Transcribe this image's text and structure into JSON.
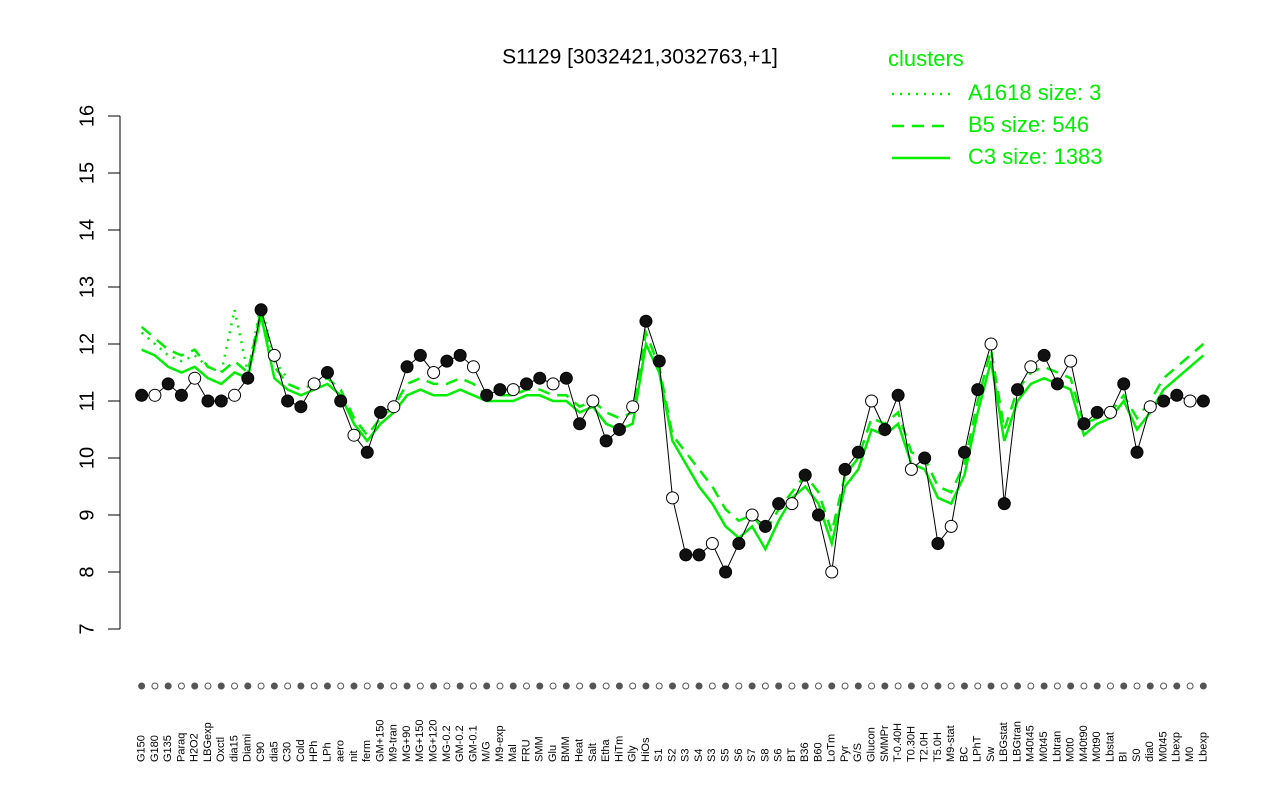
{
  "chart_data": {
    "type": "line",
    "title": "S1129 [3032421,3032763,+1]",
    "legend_title": "clusters",
    "legend_color": "#00ee00",
    "categories": [
      "G150",
      "G180",
      "G135",
      "Paraq",
      "H2O2",
      "LBGexp",
      "Oxctl",
      "dia15",
      "Diami",
      "C90",
      "dia5",
      "C30",
      "Cold",
      "HPh",
      "LPh",
      "aero",
      "nit",
      "ferm",
      "GM+150",
      "M9-tran",
      "MG+90",
      "MG+150",
      "MG+120",
      "MG-0.2",
      "GM-0.2",
      "GM-0.1",
      "M/G",
      "M9-exp",
      "Mal",
      "FRU",
      "SMM",
      "Glu",
      "BMM",
      "Heat",
      "Salt",
      "Etha",
      "HiTm",
      "Gly",
      "HiOs",
      "S1",
      "S2",
      "S3",
      "S4",
      "S3",
      "S5",
      "S6",
      "S7",
      "S8",
      "S6",
      "BT",
      "B36",
      "B60",
      "LoTm",
      "Pyr",
      "G/S",
      "Glucon",
      "SMMPr",
      "T-0.40H",
      "T0.30H",
      "T2.0H",
      "T5.0H",
      "M9-stat",
      "BC",
      "LPhT",
      "Sw",
      "LBGstat",
      "LBGtran",
      "M40t45",
      "M0t45",
      "Lbtran",
      "M0t0",
      "M40t90",
      "M0t90",
      "Lbstat",
      "BI",
      "S0",
      "dia0",
      "M0t45",
      "Lbexp",
      "M0",
      "Lbexp"
    ],
    "points": [
      11.1,
      11.1,
      11.3,
      11.1,
      11.4,
      11.0,
      11.0,
      11.1,
      11.4,
      12.6,
      11.8,
      11.0,
      10.9,
      11.3,
      11.5,
      11.0,
      10.4,
      10.1,
      10.8,
      10.9,
      11.6,
      11.8,
      11.5,
      11.7,
      11.8,
      11.6,
      11.1,
      11.2,
      11.2,
      11.3,
      11.4,
      11.3,
      11.4,
      10.6,
      11.0,
      10.3,
      10.5,
      10.9,
      12.4,
      11.7,
      9.3,
      8.3,
      8.3,
      8.5,
      8.0,
      8.5,
      9.0,
      8.8,
      9.2,
      9.2,
      9.7,
      9.0,
      8.0,
      9.8,
      10.1,
      11.0,
      10.5,
      11.1,
      9.8,
      10.0,
      8.5,
      8.8,
      10.1,
      11.2,
      12.0,
      9.2,
      11.2,
      11.6,
      11.8,
      11.3,
      11.7,
      10.6,
      10.8,
      10.8,
      11.3,
      10.1,
      10.9,
      11.0,
      11.1,
      11.0,
      11.0
    ],
    "series": [
      {
        "name": "A1618 size: 3",
        "style": "dotted",
        "color": "#00ee00",
        "values": [
          12.2,
          12.0,
          11.8,
          11.7,
          11.8,
          11.6,
          11.5,
          12.6,
          11.5,
          12.7,
          11.7,
          11.4,
          null,
          null,
          null,
          null,
          null,
          null,
          null,
          null,
          null,
          null,
          null,
          null,
          null,
          null,
          null,
          null,
          null,
          null,
          null,
          null,
          null,
          null,
          null,
          null,
          null,
          null,
          null,
          null,
          null,
          null,
          null,
          null,
          null,
          null,
          null,
          null,
          null,
          null,
          null,
          null,
          null,
          null,
          null,
          null,
          null,
          null,
          null,
          null,
          null,
          null,
          null,
          null,
          null,
          null,
          null,
          null,
          null,
          null,
          null,
          null,
          null,
          null,
          null,
          null,
          null,
          null,
          null,
          null,
          null
        ]
      },
      {
        "name": "B5 size: 546",
        "style": "dashed",
        "color": "#00ee00",
        "values": [
          12.3,
          12.1,
          11.9,
          11.8,
          11.9,
          11.6,
          11.5,
          11.7,
          11.5,
          12.6,
          11.6,
          11.3,
          11.2,
          11.3,
          11.4,
          11.2,
          10.7,
          10.4,
          10.7,
          10.9,
          11.3,
          11.4,
          11.3,
          11.3,
          11.4,
          11.3,
          11.1,
          11.1,
          11.1,
          11.2,
          11.2,
          11.1,
          11.1,
          10.9,
          11.0,
          10.8,
          10.7,
          10.8,
          12.2,
          11.6,
          10.4,
          10.1,
          9.8,
          9.5,
          9.1,
          8.9,
          9.0,
          8.7,
          9.1,
          9.4,
          9.7,
          9.4,
          8.7,
          9.7,
          10.0,
          10.7,
          10.6,
          10.8,
          10.1,
          10.0,
          9.5,
          9.4,
          9.9,
          11.0,
          11.9,
          10.5,
          11.2,
          11.5,
          11.6,
          11.5,
          11.4,
          10.6,
          10.7,
          10.8,
          11.1,
          10.7,
          11.0,
          11.4,
          11.6,
          11.8,
          12.0
        ]
      },
      {
        "name": "C3 size: 1383",
        "style": "solid",
        "color": "#00ee00",
        "values": [
          11.9,
          11.8,
          11.6,
          11.5,
          11.6,
          11.4,
          11.3,
          11.5,
          11.4,
          12.5,
          11.4,
          11.2,
          11.1,
          11.2,
          11.3,
          11.1,
          10.6,
          10.3,
          10.6,
          10.8,
          11.1,
          11.2,
          11.1,
          11.1,
          11.2,
          11.1,
          11.0,
          11.0,
          11.0,
          11.1,
          11.1,
          11.0,
          11.0,
          10.8,
          10.9,
          10.6,
          10.5,
          10.6,
          12.0,
          11.5,
          10.3,
          9.9,
          9.5,
          9.2,
          8.8,
          8.6,
          8.8,
          8.4,
          8.9,
          9.3,
          9.5,
          9.2,
          8.5,
          9.5,
          9.8,
          10.5,
          10.4,
          10.6,
          9.9,
          9.8,
          9.3,
          9.2,
          9.7,
          10.8,
          11.7,
          10.3,
          11.0,
          11.3,
          11.4,
          11.3,
          11.2,
          10.4,
          10.6,
          10.7,
          11.0,
          10.5,
          10.8,
          11.2,
          11.4,
          11.6,
          11.8
        ]
      }
    ],
    "ylim": [
      7,
      16
    ],
    "yticks": [
      7,
      8,
      9,
      10,
      11,
      12,
      13,
      14,
      15,
      16
    ]
  }
}
